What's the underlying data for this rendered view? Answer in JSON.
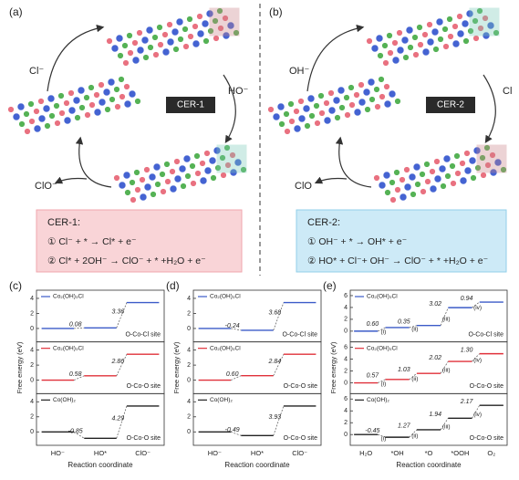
{
  "panels": [
    {
      "label": "(a)",
      "reactant": "Cl⁻",
      "co_reactant": "HO⁻",
      "product": "ClO⁻",
      "mechanism": "CER-1"
    },
    {
      "label": "(b)",
      "reactant": "OH⁻",
      "co_reactant": "Cl",
      "product": "ClO",
      "mechanism": "CER-2"
    }
  ],
  "equations": [
    {
      "title": "CER-1:",
      "steps": [
        "① Cl⁻ + * → Cl* + e⁻",
        "② Cl* + 2OH⁻ → ClO⁻ + * +H₂O + e⁻"
      ]
    },
    {
      "title": "CER-2:",
      "steps": [
        "① OH⁻ + * → OH* + e⁻",
        "② HO* + Cl⁻+ OH⁻ → ClO⁻ + * +H₂O + e⁻"
      ]
    }
  ],
  "chart_data": [
    {
      "type": "energy-diagram",
      "label": "(c)",
      "xlabel": "Reaction coordinate",
      "ylabel": "Free energy (eV)",
      "categories": [
        "HO⁻",
        "HO*",
        "ClO⁻"
      ],
      "ylim": [
        -1.3,
        4.6
      ],
      "yticks": [
        0,
        2,
        4
      ],
      "subplots": [
        {
          "name": "Co₂(OH)₃Cl",
          "color": "#3b5bc8",
          "site": "O-Co-Cl site",
          "steps": [
            0.08,
            3.36
          ],
          "step_labels": [
            "0.08",
            "3.36"
          ]
        },
        {
          "name": "Co₂(OH)₃Cl",
          "color": "#e0303a",
          "site": "O-Co-O site",
          "steps": [
            0.58,
            2.86
          ],
          "step_labels": [
            "0.58",
            "2.86"
          ]
        },
        {
          "name": "Co(OH)₂",
          "color": "#222222",
          "site": "O-Co-O site",
          "steps": [
            -0.85,
            4.29
          ],
          "step_labels": [
            "-0.85",
            "4.29"
          ]
        }
      ]
    },
    {
      "type": "energy-diagram",
      "label": "(d)",
      "xlabel": "Reaction coordinate",
      "ylabel": "Free energy (eV)",
      "categories": [
        "HO⁻",
        "HO*",
        "ClO⁻"
      ],
      "ylim": [
        -1.3,
        4.6
      ],
      "yticks": [
        0,
        2,
        4
      ],
      "subplots": [
        {
          "name": "Co₂(OH)₃Cl",
          "color": "#3b5bc8",
          "site": "O-Co-Cl site",
          "steps": [
            -0.24,
            3.68
          ],
          "step_labels": [
            "-0.24",
            "3.68"
          ]
        },
        {
          "name": "Co₂(OH)₃Cl",
          "color": "#e0303a",
          "site": "O-Co-O site",
          "steps": [
            0.6,
            2.84
          ],
          "step_labels": [
            "0.60",
            "2.84"
          ]
        },
        {
          "name": "Co(OH)₂",
          "color": "#222222",
          "site": "O-Co-O site",
          "steps": [
            -0.49,
            3.93
          ],
          "step_labels": [
            "-0.49",
            "3.93"
          ]
        }
      ]
    },
    {
      "type": "energy-diagram",
      "label": "(e)",
      "xlabel": "Reaction coordinate",
      "ylabel": "Free energy (eV)",
      "categories": [
        "H₂O",
        "*OH",
        "*O",
        "*OOH",
        "O₂"
      ],
      "ylim": [
        -1.2,
        6.3
      ],
      "yticks": [
        0,
        2,
        4,
        6
      ],
      "subplots": [
        {
          "name": "Co₂(OH)₃Cl",
          "color": "#3b5bc8",
          "site": "O-Co-Cl site",
          "steps": [
            0.6,
            0.35,
            3.02,
            0.94
          ],
          "step_labels": [
            "0.60",
            "0.35",
            "3.02",
            "0.94"
          ],
          "step_tags": [
            "(i)",
            "(ii)",
            "(iii)",
            "(iv)"
          ]
        },
        {
          "name": "Co₂(OH)₃Cl",
          "color": "#e0303a",
          "site": "O-Co-O site",
          "steps": [
            0.57,
            1.03,
            2.02,
            1.3
          ],
          "step_labels": [
            "0.57",
            "1.03",
            "2.02",
            "1.30"
          ],
          "step_tags": [
            "(i)",
            "(ii)",
            "(iii)",
            "(iv)"
          ]
        },
        {
          "name": "Co(OH)₂",
          "color": "#222222",
          "site": "O-Co-O site",
          "steps": [
            -0.45,
            1.27,
            1.94,
            2.17
          ],
          "step_labels": [
            "-0.45",
            "1.27",
            "1.94",
            "2.17"
          ],
          "step_tags": [
            "(i)",
            "(ii)",
            "(iii)",
            "(iv)"
          ]
        }
      ]
    }
  ]
}
